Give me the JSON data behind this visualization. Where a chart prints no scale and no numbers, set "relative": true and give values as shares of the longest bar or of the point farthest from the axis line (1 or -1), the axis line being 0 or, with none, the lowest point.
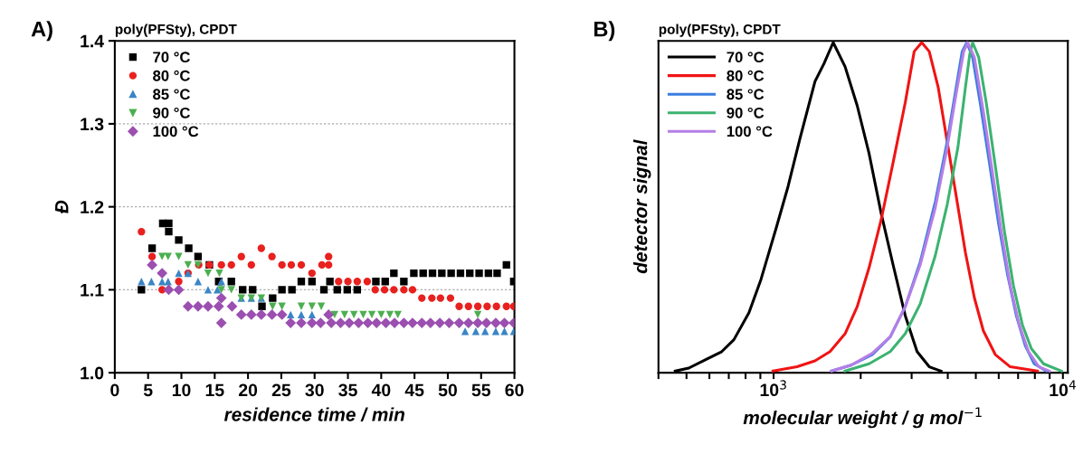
{
  "chart_data": [
    {
      "type": "scatter",
      "title": "poly(PFSty), CPDT",
      "annotations": [
        "A)"
      ],
      "xlabel": "residence time / min",
      "ylabel": "Đ",
      "xlim": [
        0,
        60
      ],
      "xticks": [
        0,
        5,
        10,
        15,
        20,
        25,
        30,
        35,
        40,
        45,
        50,
        55,
        60
      ],
      "ylim": [
        1.0,
        1.4
      ],
      "yticks": [
        {
          "value": 1.0,
          "label": "1.0"
        },
        {
          "value": 1.1,
          "label": "1.1"
        },
        {
          "value": 1.2,
          "label": "1.2"
        },
        {
          "value": 1.3,
          "label": "1.3"
        },
        {
          "value": 1.4,
          "label": "1.4"
        }
      ],
      "grid": "y",
      "legend": "top left",
      "series": [
        {
          "name": "70 °C",
          "color": "#000000",
          "marker": "square",
          "x": [
            4.0,
            5.6,
            7.2,
            8.1,
            8.1,
            9.6,
            11.1,
            12.5,
            14.2,
            15.6,
            17.5,
            19.2,
            20.7,
            22.1,
            23.7,
            25.1,
            26.6,
            28.0,
            29.6,
            31.4,
            32.3,
            33.4,
            34.9,
            36.4,
            39.2,
            40.6,
            41.9,
            43.4,
            44.9,
            46.3,
            47.7,
            49.1,
            50.5,
            51.9,
            53.3,
            54.7,
            56.1,
            57.4,
            58.8,
            59.9
          ],
          "values": [
            1.1,
            1.15,
            1.18,
            1.18,
            1.17,
            1.16,
            1.15,
            1.14,
            1.13,
            1.11,
            1.11,
            1.1,
            1.1,
            1.08,
            1.09,
            1.1,
            1.1,
            1.11,
            1.11,
            1.1,
            1.11,
            1.1,
            1.1,
            1.1,
            1.11,
            1.11,
            1.12,
            1.11,
            1.12,
            1.12,
            1.12,
            1.12,
            1.12,
            1.12,
            1.12,
            1.12,
            1.12,
            1.12,
            1.13,
            1.11
          ]
        },
        {
          "name": "80 °C",
          "color": "#e8211f",
          "marker": "circle",
          "x": [
            4.0,
            5.6,
            7.1,
            9.6,
            11.0,
            12.6,
            14.2,
            16.0,
            17.5,
            19.0,
            20.5,
            22.0,
            23.6,
            25.1,
            26.5,
            28.0,
            29.6,
            31.1,
            32.1,
            32.1,
            33.6,
            35.0,
            36.4,
            37.9,
            39.1,
            40.5,
            41.9,
            43.4,
            44.7,
            46.1,
            47.6,
            48.9,
            50.4,
            51.7,
            53.1,
            54.5,
            55.9,
            57.3,
            58.8,
            59.9
          ],
          "values": [
            1.17,
            1.14,
            1.1,
            1.11,
            1.12,
            1.13,
            1.13,
            1.13,
            1.13,
            1.14,
            1.13,
            1.15,
            1.14,
            1.13,
            1.13,
            1.13,
            1.12,
            1.13,
            1.13,
            1.14,
            1.11,
            1.11,
            1.11,
            1.11,
            1.1,
            1.1,
            1.1,
            1.1,
            1.1,
            1.09,
            1.09,
            1.09,
            1.09,
            1.08,
            1.08,
            1.08,
            1.08,
            1.08,
            1.08,
            1.08
          ]
        },
        {
          "name": "85 °C",
          "color": "#3a85c6",
          "marker": "triangle",
          "x": [
            4.0,
            5.5,
            7.1,
            8.0,
            9.6,
            11.0,
            12.5,
            14.0,
            15.4,
            16.0,
            19.0,
            20.5,
            22.0,
            26.4,
            28.0,
            29.6,
            52.6,
            54.2,
            55.6,
            57.2,
            58.5,
            59.9
          ],
          "values": [
            1.11,
            1.11,
            1.11,
            1.11,
            1.12,
            1.12,
            1.11,
            1.1,
            1.1,
            1.11,
            1.09,
            1.09,
            1.09,
            1.07,
            1.07,
            1.07,
            1.05,
            1.05,
            1.05,
            1.05,
            1.05,
            1.05
          ]
        },
        {
          "name": "90 °C",
          "color": "#4caf50",
          "marker": "triangle_down",
          "x": [
            7.1,
            8.0,
            9.6,
            11.0,
            12.5,
            14.0,
            15.7,
            16.0,
            17.5,
            19.0,
            20.5,
            22.0,
            23.7,
            25.1,
            28.0,
            29.6,
            31.0,
            33.0,
            34.5,
            35.9,
            37.3,
            38.6,
            40.0,
            41.3,
            42.5,
            54.5
          ],
          "values": [
            1.14,
            1.14,
            1.14,
            1.13,
            1.13,
            1.12,
            1.12,
            1.1,
            1.1,
            1.09,
            1.09,
            1.09,
            1.08,
            1.08,
            1.08,
            1.08,
            1.08,
            1.07,
            1.07,
            1.07,
            1.07,
            1.07,
            1.07,
            1.07,
            1.07,
            1.07
          ]
        },
        {
          "name": "100 °C",
          "color": "#9b4fb0",
          "marker": "diamond",
          "x": [
            5.6,
            7.1,
            8.1,
            9.6,
            11.0,
            12.5,
            14.0,
            15.6,
            16.0,
            16.0,
            17.6,
            19.0,
            20.5,
            22.0,
            23.6,
            25.1,
            26.4,
            28.0,
            29.6,
            30.9,
            32.1,
            32.5,
            33.9,
            35.2,
            36.6,
            38.0,
            39.3,
            40.7,
            42.0,
            43.4,
            44.7,
            46.1,
            47.4,
            48.8,
            50.2,
            51.7,
            53.1,
            54.5,
            55.8,
            57.2,
            58.5,
            59.9
          ],
          "values": [
            1.13,
            1.12,
            1.1,
            1.1,
            1.08,
            1.08,
            1.08,
            1.08,
            1.09,
            1.06,
            1.08,
            1.07,
            1.07,
            1.07,
            1.07,
            1.07,
            1.06,
            1.06,
            1.06,
            1.06,
            1.07,
            1.06,
            1.06,
            1.06,
            1.06,
            1.06,
            1.06,
            1.06,
            1.06,
            1.06,
            1.06,
            1.06,
            1.06,
            1.06,
            1.06,
            1.06,
            1.06,
            1.06,
            1.06,
            1.06,
            1.06,
            1.06
          ]
        }
      ]
    },
    {
      "type": "line",
      "title": "poly(PFSty), CPDT",
      "annotations": [
        "B)"
      ],
      "xlabel": "molecular weight / g mol$^{−1}$",
      "ylabel": "detector signal",
      "relative": true,
      "log": "x",
      "tick_labels": "x",
      "legend": "top left",
      "xlim": [
        400,
        10400
      ],
      "xticks": [
        {
          "value": 400,
          "label": null
        },
        {
          "value": 500,
          "label": null
        },
        {
          "value": 600,
          "label": null
        },
        {
          "value": 700,
          "label": null
        },
        {
          "value": 800,
          "label": null
        },
        {
          "value": 900,
          "label": null
        },
        {
          "value": 1000,
          "label": "10$^{3}$"
        },
        {
          "value": 2000,
          "label": null
        },
        {
          "value": 3000,
          "label": null
        },
        {
          "value": 4000,
          "label": null
        },
        {
          "value": 5000,
          "label": null
        },
        {
          "value": 6000,
          "label": null
        },
        {
          "value": 7000,
          "label": null
        },
        {
          "value": 8000,
          "label": null
        },
        {
          "value": 9000,
          "label": null
        },
        {
          "value": 10000,
          "label": "10$^{4}$"
        }
      ],
      "series": [
        {
          "name": "70 °C",
          "color": "#000000",
          "x": [
            457,
            509,
            587,
            662,
            729,
            822,
            904,
            1019,
            1122,
            1233,
            1390,
            1493,
            1607,
            1766,
            1945,
            2138,
            2355,
            2588,
            2851,
            3133,
            3451,
            3793
          ],
          "values": [
            0.005,
            0.014,
            0.041,
            0.064,
            0.1,
            0.182,
            0.282,
            0.436,
            0.564,
            0.709,
            0.882,
            0.936,
            1.0,
            0.927,
            0.809,
            0.664,
            0.482,
            0.327,
            0.173,
            0.064,
            0.018,
            0.005
          ]
        },
        {
          "name": "80 °C",
          "color": "#f01414",
          "x": [
            995,
            1205,
            1390,
            1567,
            1766,
            1945,
            2138,
            2355,
            2588,
            2851,
            3062,
            3251,
            3451,
            3707,
            3981,
            4276,
            4603,
            4943,
            5309,
            5838,
            6577,
            8166
          ],
          "values": [
            0.005,
            0.018,
            0.036,
            0.064,
            0.118,
            0.2,
            0.318,
            0.464,
            0.636,
            0.818,
            0.973,
            1.0,
            0.973,
            0.864,
            0.7,
            0.536,
            0.364,
            0.227,
            0.127,
            0.055,
            0.018,
            0.005
          ]
        },
        {
          "name": "85 °C",
          "color": "#3a7de0",
          "x": [
            1585,
            1854,
            2193,
            2531,
            2851,
            3213,
            3622,
            3981,
            4276,
            4487,
            4656,
            4875,
            5176,
            5572,
            5984,
            6427,
            6902,
            7413,
            7962,
            8770
          ],
          "values": [
            0.005,
            0.023,
            0.055,
            0.109,
            0.2,
            0.336,
            0.518,
            0.7,
            0.864,
            0.973,
            1.0,
            0.955,
            0.818,
            0.636,
            0.455,
            0.3,
            0.173,
            0.082,
            0.027,
            0.005
          ]
        },
        {
          "name": "90 °C",
          "color": "#3cb371",
          "x": [
            1766,
            2138,
            2531,
            2851,
            3213,
            3622,
            3981,
            4335,
            4603,
            4764,
            4875,
            5117,
            5433,
            5838,
            6281,
            6745,
            7244,
            7780,
            8570,
            9886
          ],
          "values": [
            0.005,
            0.027,
            0.064,
            0.118,
            0.209,
            0.355,
            0.509,
            0.682,
            0.864,
            0.964,
            1.0,
            0.955,
            0.818,
            0.627,
            0.427,
            0.264,
            0.145,
            0.073,
            0.027,
            0.005
          ]
        },
        {
          "name": "100 °C",
          "color": "#b57ee6",
          "x": [
            1585,
            1854,
            2193,
            2531,
            2851,
            3213,
            3622,
            3981,
            4276,
            4541,
            4688,
            4943,
            5309,
            5702,
            6124,
            6577,
            7063,
            7603,
            8260,
            8974
          ],
          "values": [
            0.005,
            0.023,
            0.059,
            0.109,
            0.2,
            0.327,
            0.5,
            0.682,
            0.845,
            0.973,
            1.0,
            0.955,
            0.791,
            0.609,
            0.427,
            0.264,
            0.145,
            0.064,
            0.018,
            0.005
          ]
        }
      ]
    }
  ]
}
